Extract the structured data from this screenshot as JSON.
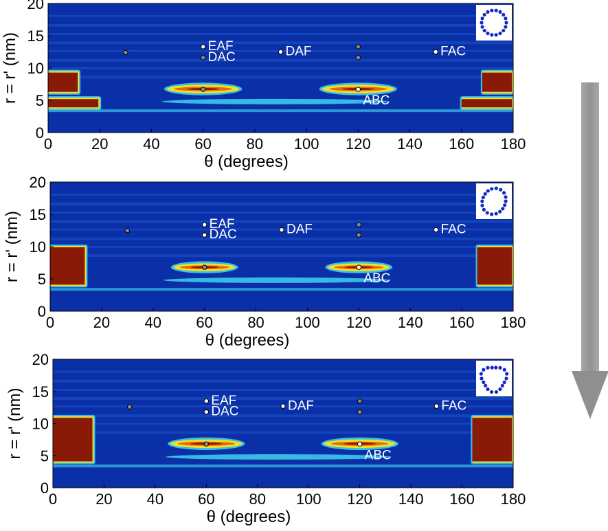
{
  "figure": {
    "arrow_color": "#8f8f8f",
    "colors": {
      "background": "#0a2fa6",
      "band_light": "#1a55cc",
      "band_cyan": "#3fd0f0",
      "hot_red": "#8a1a08",
      "hot_orange": "#e86a10",
      "hot_yellow": "#f5e020",
      "inset_ring": "#1428c8"
    }
  },
  "chart_data": [
    {
      "type": "heatmap",
      "panel": "top",
      "xlabel": "θ (degrees)",
      "ylabel": "r = r' (nm)",
      "xlim": [
        0,
        180
      ],
      "ylim": [
        0,
        20
      ],
      "xticks": [
        "0",
        "20",
        "40",
        "60",
        "80",
        "100",
        "120",
        "140",
        "160",
        "180"
      ],
      "yticks": [
        "0",
        "5",
        "10",
        "15",
        "20"
      ],
      "inset": "ring",
      "points": [
        {
          "label": "",
          "x": 30,
          "y": 12.4,
          "fill": "gray"
        },
        {
          "label": "EAF",
          "x": 60,
          "y": 13.3,
          "fill": "white"
        },
        {
          "label": "DAC",
          "x": 60,
          "y": 11.6,
          "fill": "gray"
        },
        {
          "label": "DAF",
          "x": 90,
          "y": 12.5,
          "fill": "white"
        },
        {
          "label": "",
          "x": 120,
          "y": 13.3,
          "fill": "gray"
        },
        {
          "label": "",
          "x": 120,
          "y": 11.6,
          "fill": "gray"
        },
        {
          "label": "FAC",
          "x": 150,
          "y": 12.5,
          "fill": "white"
        },
        {
          "label": "",
          "x": 60,
          "y": 6.7,
          "fill": "gray"
        },
        {
          "label": "ABC",
          "x": 120,
          "y": 6.7,
          "fill": "white"
        }
      ],
      "hotspots": [
        {
          "x0": 0,
          "x1": 12,
          "y0": 6.2,
          "y1": 9.4,
          "level": "red"
        },
        {
          "x0": 0,
          "x1": 20,
          "y0": 3.8,
          "y1": 5.3,
          "level": "red"
        },
        {
          "x0": 168,
          "x1": 180,
          "y0": 6.2,
          "y1": 9.4,
          "level": "red"
        },
        {
          "x0": 160,
          "x1": 180,
          "y0": 3.8,
          "y1": 5.3,
          "level": "red"
        },
        {
          "x0": 46,
          "x1": 74,
          "y0": 6.2,
          "y1": 7.3,
          "level": "orange"
        },
        {
          "x0": 106,
          "x1": 134,
          "y0": 6.2,
          "y1": 7.3,
          "level": "orange"
        }
      ]
    },
    {
      "type": "heatmap",
      "panel": "middle",
      "xlabel": "θ (degrees)",
      "ylabel": "r = r' (nm)",
      "xlim": [
        0,
        180
      ],
      "ylim": [
        0,
        20
      ],
      "xticks": [
        "0",
        "20",
        "40",
        "60",
        "80",
        "100",
        "120",
        "140",
        "160",
        "180"
      ],
      "yticks": [
        "0",
        "5",
        "10",
        "15",
        "20"
      ],
      "inset": "slightly deformed ring",
      "points": [
        {
          "label": "",
          "x": 30,
          "y": 12.5,
          "fill": "gray"
        },
        {
          "label": "EAF",
          "x": 60,
          "y": 13.4,
          "fill": "white"
        },
        {
          "label": "DAC",
          "x": 60,
          "y": 11.8,
          "fill": "white"
        },
        {
          "label": "DAF",
          "x": 90,
          "y": 12.6,
          "fill": "white"
        },
        {
          "label": "",
          "x": 120,
          "y": 13.4,
          "fill": "gray"
        },
        {
          "label": "",
          "x": 120,
          "y": 11.8,
          "fill": "gray"
        },
        {
          "label": "FAC",
          "x": 150,
          "y": 12.6,
          "fill": "white"
        },
        {
          "label": "",
          "x": 60,
          "y": 6.8,
          "fill": "gray"
        },
        {
          "label": "ABC",
          "x": 120,
          "y": 6.8,
          "fill": "white"
        }
      ],
      "hotspots": [
        {
          "x0": 0,
          "x1": 14,
          "y0": 4.0,
          "y1": 10.0,
          "level": "red"
        },
        {
          "x0": 166,
          "x1": 180,
          "y0": 4.0,
          "y1": 10.0,
          "level": "red"
        },
        {
          "x0": 48,
          "x1": 72,
          "y0": 6.3,
          "y1": 7.3,
          "level": "orange"
        },
        {
          "x0": 108,
          "x1": 132,
          "y0": 6.3,
          "y1": 7.3,
          "level": "orange"
        }
      ]
    },
    {
      "type": "heatmap",
      "panel": "bottom",
      "xlabel": "θ (degrees)",
      "ylabel": "r = r' (nm)",
      "xlim": [
        0,
        180
      ],
      "ylim": [
        0,
        20
      ],
      "xticks": [
        "0",
        "20",
        "40",
        "60",
        "80",
        "100",
        "120",
        "140",
        "160",
        "180"
      ],
      "yticks": [
        "0",
        "5",
        "10",
        "15",
        "20"
      ],
      "inset": "triangular deformed ring",
      "points": [
        {
          "label": "",
          "x": 30,
          "y": 12.6,
          "fill": "gray"
        },
        {
          "label": "EAF",
          "x": 60,
          "y": 13.5,
          "fill": "white"
        },
        {
          "label": "DAC",
          "x": 60,
          "y": 11.8,
          "fill": "white"
        },
        {
          "label": "DAF",
          "x": 90,
          "y": 12.7,
          "fill": "white"
        },
        {
          "label": "",
          "x": 120,
          "y": 13.5,
          "fill": "gray"
        },
        {
          "label": "",
          "x": 120,
          "y": 11.8,
          "fill": "gray"
        },
        {
          "label": "FAC",
          "x": 150,
          "y": 12.7,
          "fill": "white"
        },
        {
          "label": "",
          "x": 60,
          "y": 6.8,
          "fill": "gray"
        },
        {
          "label": "ABC",
          "x": 120,
          "y": 6.8,
          "fill": "white"
        }
      ],
      "hotspots": [
        {
          "x0": 0,
          "x1": 16,
          "y0": 4.0,
          "y1": 11.0,
          "level": "red"
        },
        {
          "x0": 164,
          "x1": 180,
          "y0": 4.0,
          "y1": 11.0,
          "level": "red"
        },
        {
          "x0": 46,
          "x1": 74,
          "y0": 6.3,
          "y1": 7.4,
          "level": "orange"
        },
        {
          "x0": 106,
          "x1": 134,
          "y0": 6.3,
          "y1": 7.4,
          "level": "orange"
        }
      ]
    }
  ]
}
